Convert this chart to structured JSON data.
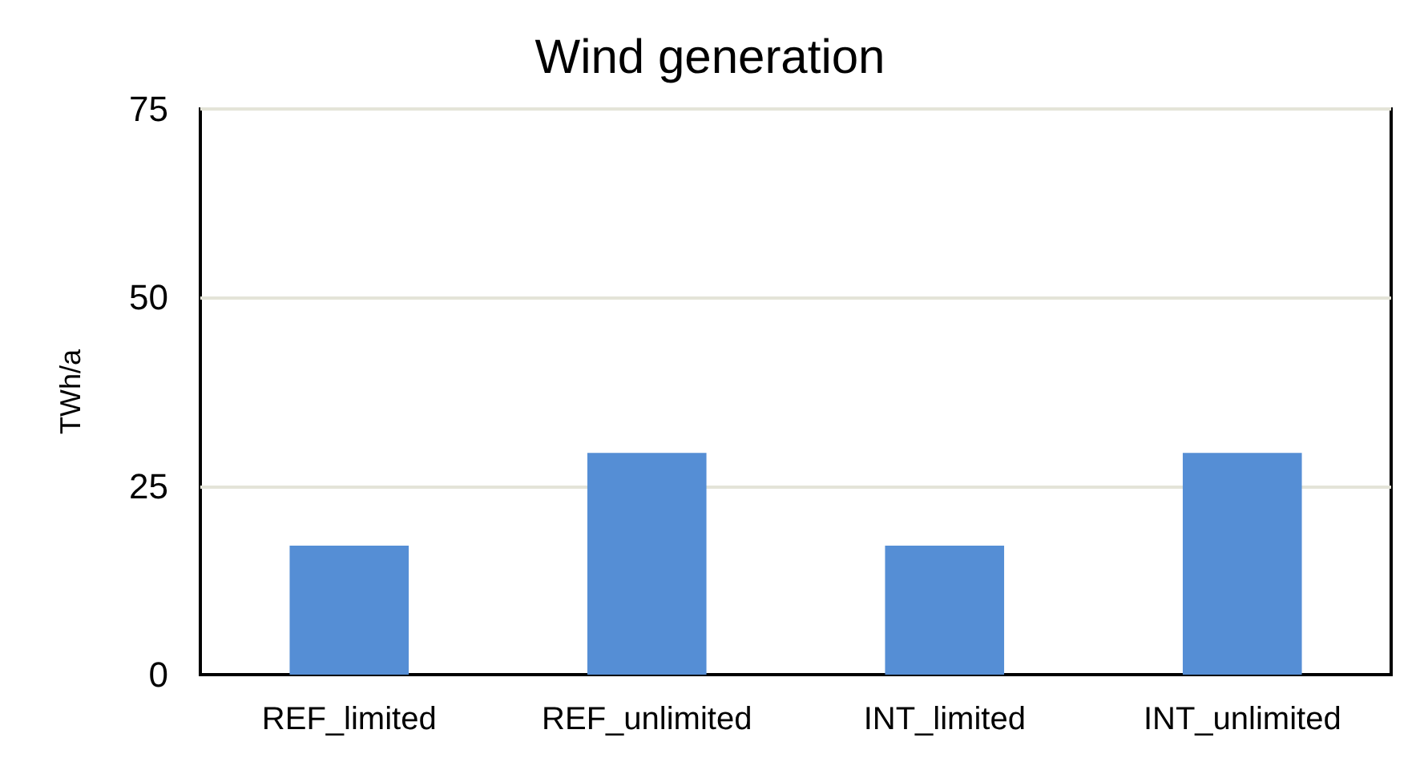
{
  "chart_data": {
    "type": "bar",
    "title": "Wind generation",
    "ylabel": "TWh/a",
    "categories": [
      "REF_limited",
      "REF_unlimited",
      "INT_limited",
      "INT_unlimited"
    ],
    "values": [
      17.1,
      29.4,
      17.1,
      29.4
    ],
    "color": "#558ed5",
    "ylim": [
      0,
      75
    ],
    "yticks": [
      0,
      25,
      50,
      75
    ],
    "grid": "y"
  }
}
